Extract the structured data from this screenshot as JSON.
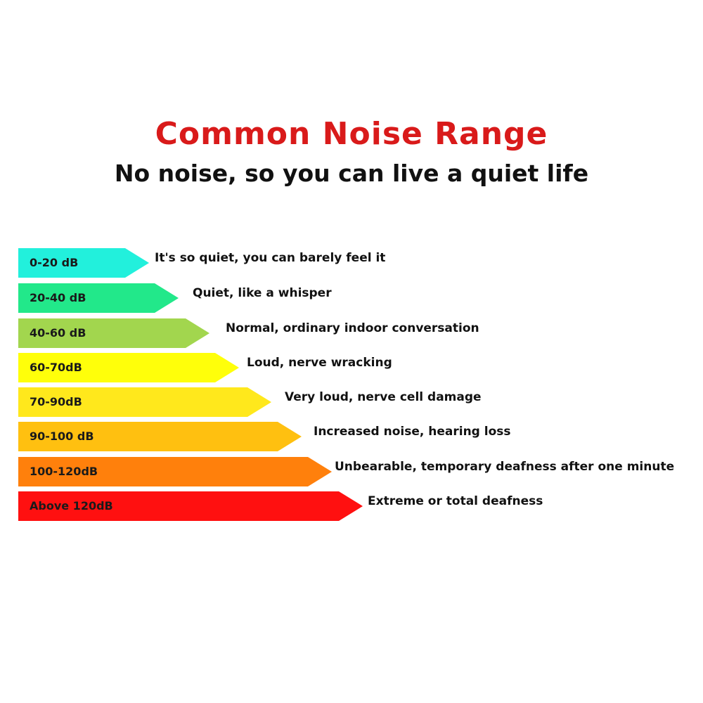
{
  "header": {
    "title": "Common Noise Range",
    "subtitle": "No noise, so you can live a quiet life"
  },
  "levels": [
    {
      "range": "0-20 dB",
      "description": "It's so quiet, you can barely feel it",
      "color": "#22f0dc"
    },
    {
      "range": "20-40 dB",
      "description": "Quiet, like a whisper",
      "color": "#22e88a"
    },
    {
      "range": "40-60 dB",
      "description": "Normal, ordinary indoor conversation",
      "color": "#a2d64e"
    },
    {
      "range": "60-70dB",
      "description": "Loud, nerve wracking",
      "color": "#ffff0a"
    },
    {
      "range": "70-90dB",
      "description": "Very loud, nerve cell damage",
      "color": "#ffe81c"
    },
    {
      "range": "90-100 dB",
      "description": "Increased noise, hearing loss",
      "color": "#ffc010"
    },
    {
      "range": "100-120dB",
      "description": "Unbearable, temporary deafness after one minute",
      "color": "#ff800c"
    },
    {
      "range": "Above 120dB",
      "description": "Extreme or total deafness",
      "color": "#ff1010"
    }
  ]
}
